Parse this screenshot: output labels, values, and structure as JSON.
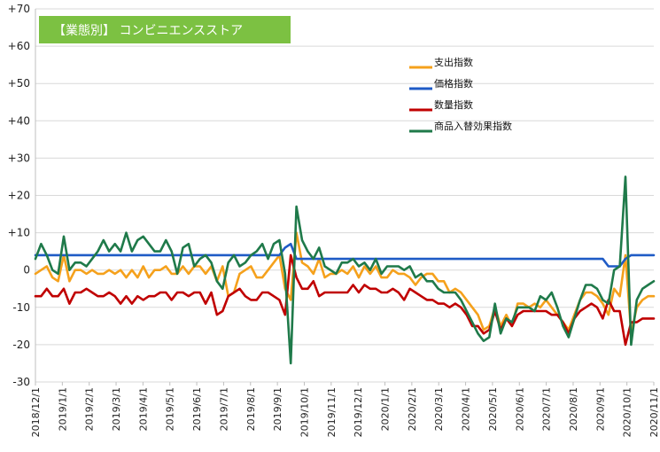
{
  "chart_data": {
    "type": "line",
    "title": "【業態別】 コンビニエンスストア",
    "xlabel": "",
    "ylabel": "",
    "ylim": [
      -30,
      70
    ],
    "yticks": [
      -30,
      -20,
      -10,
      0,
      10,
      20,
      30,
      40,
      50,
      60,
      70
    ],
    "ytick_labels": [
      "-30",
      "-20",
      "-10",
      "0",
      "+10",
      "+20",
      "+30",
      "+40",
      "+50",
      "+60",
      "+70"
    ],
    "x_tick_labels": [
      "2018/12/1",
      "2019/1/1",
      "2019/2/1",
      "2019/3/1",
      "2019/4/1",
      "2019/5/1",
      "2019/6/1",
      "2019/7/1",
      "2019/8/1",
      "2019/9/1",
      "2019/10/1",
      "2019/11/1",
      "2019/12/1",
      "2020/1/1",
      "2020/2/1",
      "2020/3/1",
      "2020/4/1",
      "2020/5/1",
      "2020/6/1",
      "2020/7/1",
      "2020/8/1",
      "2020/9/1",
      "2020/10/1",
      "2020/11/1"
    ],
    "grid": "horizontal",
    "legend": "top-right",
    "x_periods": "weekly",
    "series": [
      {
        "name": "支出指数",
        "color": "#F5A11C",
        "values": [
          -1,
          0,
          1,
          -2,
          -3,
          4,
          -3,
          0,
          0,
          -1,
          0,
          -1,
          -1,
          0,
          -1,
          0,
          -2,
          0,
          -2,
          1,
          -2,
          0,
          0,
          1,
          -1,
          -1,
          1,
          -1,
          1,
          1,
          -1,
          1,
          -3,
          1,
          -7,
          -6,
          -1,
          0,
          1,
          -2,
          -2,
          0,
          2,
          4,
          -5,
          -8,
          10,
          2,
          1,
          -1,
          3,
          -2,
          -1,
          -1,
          0,
          -1,
          1,
          -2,
          1,
          -1,
          1,
          -2,
          -2,
          0,
          -1,
          -1,
          -2,
          -4,
          -2,
          -1,
          -1,
          -3,
          -3,
          -6,
          -5,
          -6,
          -8,
          -10,
          -12,
          -16,
          -15,
          -10,
          -15,
          -12,
          -15,
          -9,
          -9,
          -10,
          -9,
          -10,
          -8,
          -10,
          -12,
          -14,
          -16,
          -12,
          -8,
          -6,
          -6,
          -7,
          -9,
          -12,
          -5,
          -7,
          4,
          -17,
          -10,
          -8,
          -7,
          -7
        ]
      },
      {
        "name": "価格指数",
        "color": "#1F5BC6",
        "values": [
          4,
          4,
          4,
          4,
          4,
          4,
          4,
          4,
          4,
          4,
          4,
          4,
          4,
          4,
          4,
          4,
          4,
          4,
          4,
          4,
          4,
          4,
          4,
          4,
          4,
          4,
          4,
          4,
          4,
          4,
          4,
          4,
          4,
          4,
          4,
          4,
          4,
          4,
          4,
          4,
          4,
          4,
          4,
          4,
          6,
          7,
          3,
          3,
          3,
          3,
          3,
          3,
          3,
          3,
          3,
          3,
          3,
          3,
          3,
          3,
          3,
          3,
          3,
          3,
          3,
          3,
          3,
          3,
          3,
          3,
          3,
          3,
          3,
          3,
          3,
          3,
          3,
          3,
          3,
          3,
          3,
          3,
          3,
          3,
          3,
          3,
          3,
          3,
          3,
          3,
          3,
          3,
          3,
          3,
          3,
          3,
          3,
          3,
          3,
          3,
          3,
          1,
          1,
          1,
          3,
          4,
          4,
          4,
          4,
          4
        ]
      },
      {
        "name": "数量指数",
        "color": "#C00000",
        "values": [
          -7,
          -7,
          -5,
          -7,
          -7,
          -5,
          -9,
          -6,
          -6,
          -5,
          -6,
          -7,
          -7,
          -6,
          -7,
          -9,
          -7,
          -9,
          -7,
          -8,
          -7,
          -7,
          -6,
          -6,
          -8,
          -6,
          -6,
          -7,
          -6,
          -6,
          -9,
          -6,
          -12,
          -11,
          -7,
          -6,
          -5,
          -7,
          -8,
          -8,
          -6,
          -6,
          -7,
          -8,
          -12,
          4,
          -2,
          -5,
          -5,
          -3,
          -7,
          -6,
          -6,
          -6,
          -6,
          -6,
          -4,
          -6,
          -4,
          -5,
          -5,
          -6,
          -6,
          -5,
          -6,
          -8,
          -5,
          -6,
          -7,
          -8,
          -8,
          -9,
          -9,
          -10,
          -9,
          -10,
          -12,
          -15,
          -15,
          -17,
          -16,
          -11,
          -16,
          -13,
          -15,
          -12,
          -11,
          -11,
          -11,
          -11,
          -11,
          -12,
          -12,
          -14,
          -17,
          -13,
          -11,
          -10,
          -9,
          -10,
          -13,
          -8,
          -11,
          -11,
          -20,
          -14,
          -14,
          -13,
          -13,
          -13
        ]
      },
      {
        "name": "商品入替効果指数",
        "color": "#1F7A4A",
        "values": [
          3,
          7,
          4,
          0,
          -1,
          9,
          0,
          2,
          2,
          1,
          3,
          5,
          8,
          5,
          7,
          5,
          10,
          5,
          8,
          9,
          7,
          5,
          5,
          8,
          5,
          -1,
          6,
          7,
          1,
          3,
          4,
          2,
          -3,
          -5,
          2,
          4,
          1,
          2,
          4,
          5,
          7,
          3,
          7,
          8,
          -1,
          -25,
          17,
          8,
          5,
          3,
          6,
          1,
          0,
          -1,
          2,
          2,
          3,
          1,
          2,
          0,
          3,
          -1,
          1,
          1,
          1,
          0,
          1,
          -2,
          -1,
          -3,
          -3,
          -5,
          -6,
          -6,
          -6,
          -8,
          -11,
          -14,
          -17,
          -19,
          -18,
          -9,
          -17,
          -13,
          -14,
          -10,
          -10,
          -10,
          -11,
          -7,
          -8,
          -6,
          -10,
          -15,
          -18,
          -13,
          -8,
          -4,
          -4,
          -5,
          -8,
          -9,
          0,
          1,
          25,
          -20,
          -8,
          -5,
          -4,
          -3
        ]
      }
    ]
  }
}
